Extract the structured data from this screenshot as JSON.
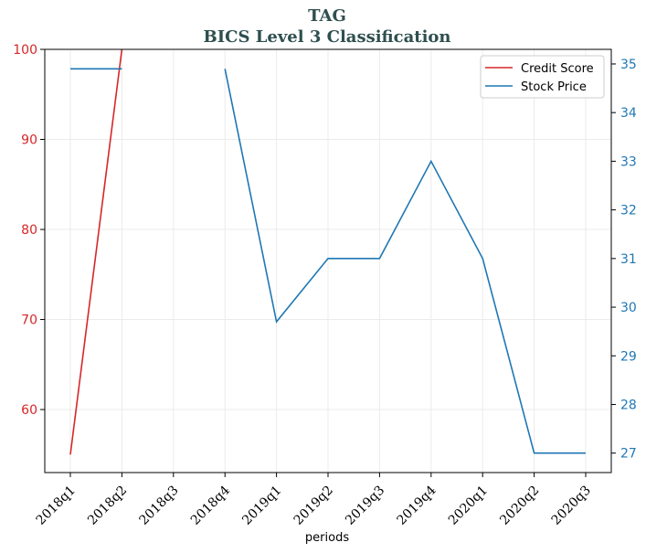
{
  "chart_data": {
    "type": "line",
    "title": "TAG",
    "subtitle": "BICS Level 3 Classification",
    "xlabel": "periods",
    "categories": [
      "2018q1",
      "2018q2",
      "2018q3",
      "2018q4",
      "2019q1",
      "2019q2",
      "2019q3",
      "2019q4",
      "2020q1",
      "2020q2",
      "2020q3"
    ],
    "left_axis": {
      "ylim": [
        53,
        100
      ],
      "ticks": [
        "60",
        "70",
        "80",
        "90",
        "100"
      ],
      "color": "#d62728"
    },
    "right_axis": {
      "ylim": [
        26.6,
        35.3
      ],
      "ticks": [
        "27",
        "28",
        "29",
        "30",
        "31",
        "32",
        "33",
        "34",
        "35"
      ],
      "color": "#1f77b4"
    },
    "series": [
      {
        "name": "Credit Score",
        "axis": "left",
        "color": "#d62728",
        "values": [
          55,
          100,
          null,
          null,
          null,
          null,
          null,
          null,
          null,
          null,
          null
        ]
      },
      {
        "name": "Stock Price",
        "axis": "right",
        "color": "#1f77b4",
        "values": [
          34.9,
          34.9,
          null,
          34.9,
          29.7,
          31.0,
          31.0,
          33.0,
          31.0,
          27.0,
          27.0
        ]
      }
    ],
    "grid": true,
    "legend": "top-right"
  }
}
